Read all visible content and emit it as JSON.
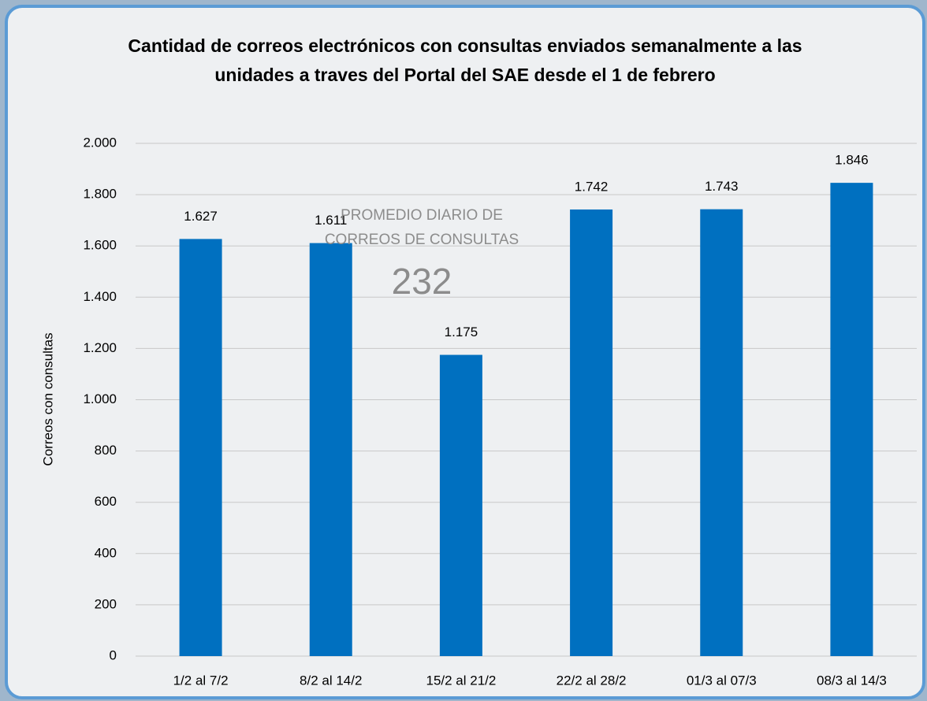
{
  "chart_data": {
    "type": "bar",
    "title": "Cantidad de correos electrónicos con consultas enviados semanalmente a las unidades a traves del Portal del SAE desde el 1 de febrero",
    "ylabel": "Correos con consultas",
    "categories": [
      "1/2 al 7/2",
      "8/2 al 14/2",
      "15/2 al 21/2",
      "22/2 al 28/2",
      "01/3 al 07/3",
      "08/3 al 14/3"
    ],
    "values": [
      1627,
      1611,
      1175,
      1742,
      1743,
      1846
    ],
    "value_labels": [
      "1.627",
      "1.611",
      "1.175",
      "1.742",
      "1.743",
      "1.846"
    ],
    "color": "#0070c0",
    "ylim": [
      0,
      2000
    ],
    "yticks": [
      0,
      200,
      400,
      600,
      800,
      {
        "value": 1000,
        "label": "1.000"
      },
      {
        "value": 1200,
        "label": "1.200"
      },
      {
        "value": 1400,
        "label": "1.400"
      },
      {
        "value": 1600,
        "label": "1.600"
      },
      {
        "value": 1800,
        "label": "1.800"
      },
      {
        "value": 2000,
        "label": "2.000"
      }
    ],
    "grid": true,
    "annotation": {
      "text": "PROMEDIO DIARIO DE CORREOS DE CONSULTAS",
      "value": 232
    }
  }
}
